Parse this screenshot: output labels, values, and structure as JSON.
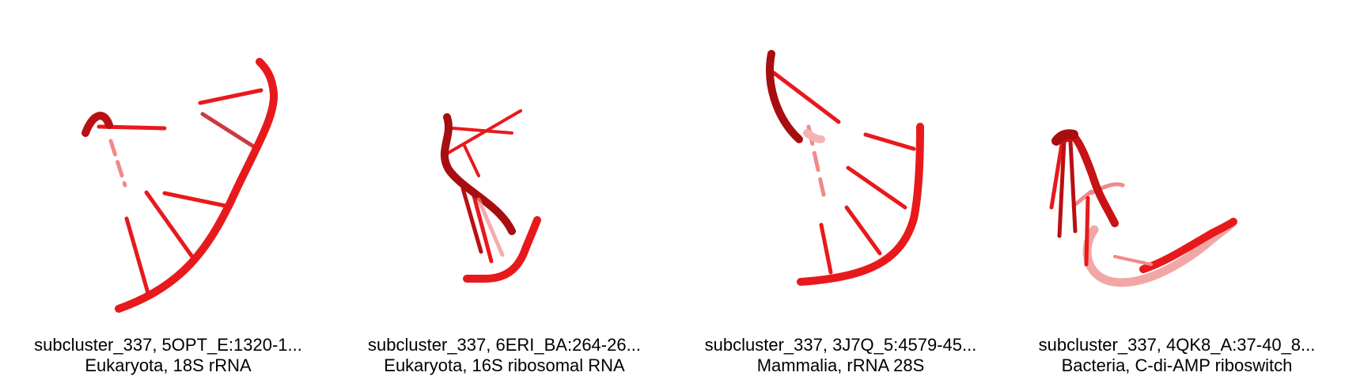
{
  "colors": {
    "strand": "#e8191c",
    "strand_dark": "#a80d10",
    "strand_light": "#f2b8b8"
  },
  "panels": [
    {
      "title": "subcluster_337, 5OPT_E:1320-1...",
      "subtitle": "Eukaryota, 18S rRNA"
    },
    {
      "title": "subcluster_337, 6ERI_BA:264-26...",
      "subtitle": "Eukaryota, 16S ribosomal RNA"
    },
    {
      "title": "subcluster_337, 3J7Q_5:4579-45...",
      "subtitle": "Mammalia, rRNA 28S"
    },
    {
      "title": "subcluster_337, 4QK8_A:37-40_8...",
      "subtitle": "Bacteria, C-di-AMP riboswitch"
    }
  ]
}
